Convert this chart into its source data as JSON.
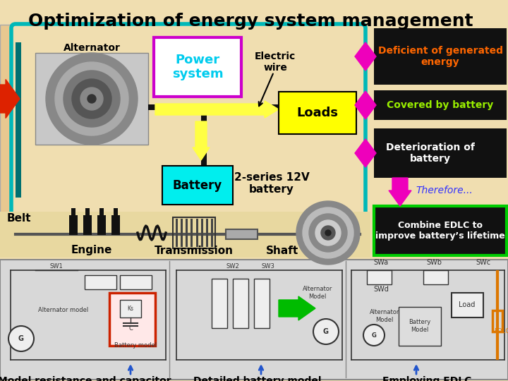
{
  "title": "Optimization of energy system management",
  "title_fontsize": 20,
  "bg_color": "#f0deb0",
  "main_box_color": "#00b8b8",
  "labels": {
    "alternator": "Alternator",
    "power_system": "Power\nsystem",
    "electric_wire": "Electric\nwire",
    "loads": "Loads",
    "battery": "Battery",
    "battery_series": "2-series 12V\nbattery",
    "belt": "Belt",
    "engine": "Engine",
    "transmission": "Transmission",
    "shaft": "Shaft",
    "deficient": "Deficient of generated\nenergy",
    "covered": "Covered by battery",
    "deterioration": "Deterioration of\nbattery",
    "therefore": "Therefore...",
    "combine": "Combine EDLC to\nimprove battery’s lifetime",
    "model_resistance": "Model resistance and capacitor",
    "detailed_battery": "Detailed battery model",
    "employing": "Employing EDLC"
  },
  "colors": {
    "power_system_box_edge": "#cc00cc",
    "power_system_text": "#00ccee",
    "loads_box": "#ffff00",
    "battery_box": "#00eeee",
    "deficient_box": "#111111",
    "deficient_text": "#ff6600",
    "covered_bg": "#111111",
    "covered_text": "#99ee00",
    "deterioration_box": "#111111",
    "deterioration_text": "#ffffff",
    "therefore_text": "#3333ff",
    "combine_box": "#111111",
    "combine_border": "#00cc00",
    "combine_text": "#ffffff",
    "magenta": "#ee00bb",
    "yellow_arrow": "#ffff44",
    "belt_arrow": "#dd2200",
    "green_arrow": "#00bb00",
    "blue_arrow": "#2255cc",
    "orange": "#dd7700",
    "red_border": "#cc2200",
    "teal_bar": "#007070"
  },
  "figsize": [
    7.2,
    5.4
  ],
  "dpi": 100
}
